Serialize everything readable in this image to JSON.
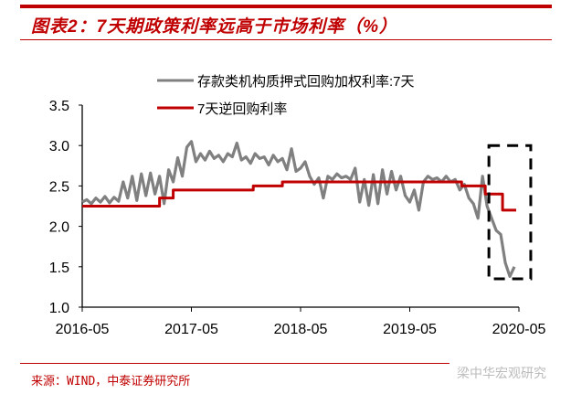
{
  "title": "图表2：7天期政策利率远高于市场利率（%）",
  "source": "来源：WIND，中泰证券研究所",
  "watermark": "梁中华宏观研究",
  "chart_data": {
    "type": "line",
    "title": "图表2：7天期政策利率远高于市场利率（%）",
    "x_unit": "months since 2016-05",
    "xlim": [
      0,
      48
    ],
    "ylim": [
      1.0,
      3.5
    ],
    "x_ticks": [
      {
        "x": 0,
        "label": "2016-05"
      },
      {
        "x": 12,
        "label": "2017-05"
      },
      {
        "x": 24,
        "label": "2018-05"
      },
      {
        "x": 36,
        "label": "2019-05"
      },
      {
        "x": 48,
        "label": "2020-05"
      }
    ],
    "y_ticks": [
      {
        "y": 1.0,
        "label": "1.0"
      },
      {
        "y": 1.5,
        "label": "1.5"
      },
      {
        "y": 2.0,
        "label": "2.0"
      },
      {
        "y": 2.5,
        "label": "2.5"
      },
      {
        "y": 3.0,
        "label": "3.0"
      },
      {
        "y": 3.5,
        "label": "3.5"
      }
    ],
    "grid": false,
    "legend_placement": "top",
    "series": [
      {
        "name": "存款类机构质押式回购加权利率:7天",
        "color": "#808080",
        "step": false,
        "points": [
          [
            0,
            2.3
          ],
          [
            0.5,
            2.33
          ],
          [
            1,
            2.28
          ],
          [
            1.5,
            2.35
          ],
          [
            2,
            2.3
          ],
          [
            2.5,
            2.37
          ],
          [
            3,
            2.29
          ],
          [
            3.5,
            2.36
          ],
          [
            4,
            2.31
          ],
          [
            4.5,
            2.55
          ],
          [
            5,
            2.35
          ],
          [
            5.5,
            2.62
          ],
          [
            6,
            2.32
          ],
          [
            6.5,
            2.65
          ],
          [
            7,
            2.38
          ],
          [
            7.5,
            2.66
          ],
          [
            8,
            2.4
          ],
          [
            8.5,
            2.62
          ],
          [
            9,
            2.28
          ],
          [
            9.5,
            2.7
          ],
          [
            10,
            2.55
          ],
          [
            10.5,
            2.85
          ],
          [
            11,
            2.62
          ],
          [
            11.5,
            2.98
          ],
          [
            12,
            3.05
          ],
          [
            12.5,
            2.8
          ],
          [
            13,
            2.9
          ],
          [
            13.5,
            2.82
          ],
          [
            14,
            2.93
          ],
          [
            14.5,
            2.84
          ],
          [
            15,
            2.88
          ],
          [
            15.5,
            2.8
          ],
          [
            16,
            2.9
          ],
          [
            16.5,
            2.86
          ],
          [
            17,
            3.03
          ],
          [
            17.5,
            2.82
          ],
          [
            18,
            2.86
          ],
          [
            18.5,
            2.78
          ],
          [
            19,
            2.9
          ],
          [
            19.5,
            2.84
          ],
          [
            20,
            2.86
          ],
          [
            20.5,
            2.76
          ],
          [
            21,
            2.88
          ],
          [
            21.5,
            2.8
          ],
          [
            22,
            2.84
          ],
          [
            22.5,
            2.7
          ],
          [
            23,
            2.96
          ],
          [
            23.5,
            2.68
          ],
          [
            24,
            2.72
          ],
          [
            24.5,
            2.8
          ],
          [
            25,
            2.62
          ],
          [
            25.5,
            2.52
          ],
          [
            26,
            2.6
          ],
          [
            26.5,
            2.35
          ],
          [
            27,
            2.62
          ],
          [
            27.5,
            2.58
          ],
          [
            28,
            2.65
          ],
          [
            28.5,
            2.6
          ],
          [
            29,
            2.62
          ],
          [
            29.5,
            2.58
          ],
          [
            30,
            2.72
          ],
          [
            30.5,
            2.3
          ],
          [
            31,
            2.58
          ],
          [
            31.5,
            2.26
          ],
          [
            32,
            2.64
          ],
          [
            32.5,
            2.28
          ],
          [
            33,
            2.7
          ],
          [
            33.5,
            2.4
          ],
          [
            34,
            2.68
          ],
          [
            34.5,
            2.45
          ],
          [
            35,
            2.62
          ],
          [
            35.5,
            2.38
          ],
          [
            36,
            2.3
          ],
          [
            36.5,
            2.45
          ],
          [
            37,
            2.2
          ],
          [
            37.5,
            2.55
          ],
          [
            38,
            2.62
          ],
          [
            38.5,
            2.58
          ],
          [
            39,
            2.6
          ],
          [
            39.5,
            2.55
          ],
          [
            40,
            2.62
          ],
          [
            40.5,
            2.55
          ],
          [
            41,
            2.58
          ],
          [
            41.5,
            2.45
          ],
          [
            42,
            2.52
          ],
          [
            42.5,
            2.35
          ],
          [
            43,
            2.28
          ],
          [
            43.5,
            2.1
          ],
          [
            44,
            2.62
          ],
          [
            44.5,
            2.25
          ],
          [
            45,
            2.1
          ],
          [
            45.5,
            1.95
          ],
          [
            46,
            1.9
          ],
          [
            46.5,
            1.55
          ],
          [
            47,
            1.38
          ],
          [
            47.5,
            1.5
          ]
        ]
      },
      {
        "name": "7天逆回购利率",
        "color": "#c00000",
        "step": true,
        "points": [
          [
            0,
            2.25
          ],
          [
            8.5,
            2.35
          ],
          [
            10,
            2.45
          ],
          [
            18.8,
            2.5
          ],
          [
            22,
            2.55
          ],
          [
            41.7,
            2.5
          ],
          [
            44.3,
            2.4
          ],
          [
            46.2,
            2.2
          ],
          [
            47.7,
            2.2
          ]
        ]
      }
    ],
    "annotations": [
      {
        "type": "dashed-box",
        "x": [
          44.7,
          49.3
        ],
        "y": [
          1.35,
          3.0
        ]
      }
    ]
  }
}
